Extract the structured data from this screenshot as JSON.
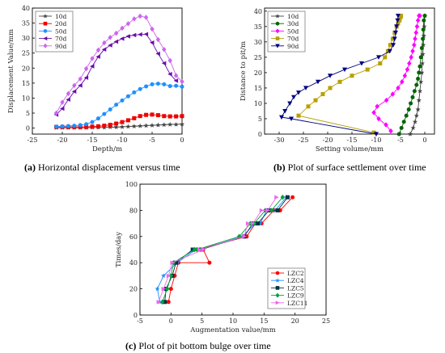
{
  "captions": {
    "a_tag": "(a)",
    "a_text": "Horizontal displacement versus time",
    "b_tag": "(b)",
    "b_text": "Plot of surface settlement over time",
    "c_tag": "(c)",
    "c_text": "Plot of pit bottom bulge over time"
  },
  "chart_data": [
    {
      "id": "a",
      "type": "line",
      "xlabel": "Depth/m",
      "ylabel": "Displacement Value/mm",
      "xlim": [
        -25,
        0
      ],
      "ylim": [
        -2,
        40
      ],
      "xticks": [
        -25,
        -20,
        -15,
        -10,
        -5,
        0
      ],
      "yticks": [
        0,
        5,
        10,
        15,
        20,
        25,
        30,
        35,
        40
      ],
      "legend_position": "top-left",
      "series": [
        {
          "name": "10d",
          "color": "#444444",
          "marker": "star",
          "x": [
            -21,
            -20,
            -19,
            -18,
            -17,
            -16,
            -15,
            -14,
            -13,
            -12,
            -11,
            -10,
            -9,
            -8,
            -7,
            -6,
            -5,
            -4,
            -3,
            -2,
            -1,
            0
          ],
          "y": [
            0.1,
            0.1,
            0.1,
            0.1,
            0.1,
            0.1,
            0.2,
            0.2,
            0.2,
            0.3,
            0.3,
            0.4,
            0.5,
            0.6,
            0.7,
            0.8,
            0.9,
            1.0,
            1.1,
            1.2,
            1.2,
            1.3
          ]
        },
        {
          "name": "20d",
          "color": "#ee0000",
          "marker": "square",
          "x": [
            -21,
            -20,
            -19,
            -18,
            -17,
            -16,
            -15,
            -14,
            -13,
            -12,
            -11,
            -10,
            -9,
            -8,
            -7,
            -6,
            -5,
            -4,
            -3,
            -2,
            -1,
            0
          ],
          "y": [
            0.4,
            0.4,
            0.4,
            0.4,
            0.4,
            0.4,
            0.5,
            0.6,
            0.8,
            1.1,
            1.5,
            2.0,
            2.6,
            3.3,
            4.0,
            4.4,
            4.5,
            4.3,
            4.0,
            3.9,
            3.9,
            4.0
          ]
        },
        {
          "name": "50d",
          "color": "#1e90ff",
          "marker": "circle",
          "x": [
            -21,
            -20,
            -19,
            -18,
            -17,
            -16,
            -15,
            -14,
            -13,
            -12,
            -11,
            -10,
            -9,
            -8,
            -7,
            -6,
            -5,
            -4,
            -3,
            -2,
            -1,
            0
          ],
          "y": [
            0.5,
            0.6,
            0.7,
            0.8,
            1.0,
            1.3,
            2.0,
            3.2,
            4.7,
            6.2,
            7.8,
            9.2,
            10.6,
            11.9,
            13.0,
            13.9,
            14.6,
            14.8,
            14.6,
            14.0,
            14.1,
            13.8
          ]
        },
        {
          "name": "70d",
          "color": "#6a0dad",
          "marker": "triangle-left",
          "x": [
            -21,
            -20,
            -19,
            -18,
            -17,
            -16,
            -15,
            -14,
            -13,
            -12,
            -11,
            -10,
            -9,
            -8,
            -7,
            -6,
            -5,
            -4,
            -3,
            -2,
            -1
          ],
          "y": [
            4.5,
            6.5,
            9.5,
            12.2,
            14.2,
            16.8,
            20.6,
            23.8,
            26.2,
            27.6,
            28.8,
            29.8,
            30.6,
            31.0,
            31.2,
            31.3,
            28.5,
            24.8,
            21.6,
            18.0,
            15.8
          ]
        },
        {
          "name": "90d",
          "color": "#cc66ee",
          "marker": "diamond",
          "x": [
            -21,
            -20,
            -19,
            -18,
            -17,
            -16,
            -15,
            -14,
            -13,
            -12,
            -11,
            -10,
            -9,
            -8,
            -7,
            -6,
            -5,
            -4,
            -3,
            -2,
            -1,
            0
          ],
          "y": [
            5.0,
            8.6,
            11.5,
            14.2,
            16.4,
            19.8,
            23.2,
            26.0,
            28.4,
            30.2,
            31.6,
            33.3,
            34.8,
            36.4,
            37.3,
            36.9,
            33.0,
            29.5,
            26.2,
            22.5,
            17.5,
            15.5
          ]
        }
      ]
    },
    {
      "id": "b",
      "type": "line",
      "xlabel": "Setting volume/mm",
      "ylabel": "Distance to pit/m",
      "xlim": [
        -33,
        2
      ],
      "ylim": [
        0,
        41
      ],
      "xticks": [
        -30,
        -25,
        -20,
        -15,
        -10,
        -5,
        0
      ],
      "yticks": [
        0,
        5,
        10,
        15,
        20,
        25,
        30,
        35,
        40
      ],
      "legend_position": "top-left",
      "series": [
        {
          "name": "10d",
          "color": "#444444",
          "marker": "star",
          "x": [
            -3.0,
            -2.4,
            -2.0,
            -1.7,
            -1.4,
            -1.2,
            -1.0,
            -0.8,
            -0.6,
            -0.5,
            -0.4,
            -0.3,
            -0.2,
            -0.1,
            0.0
          ],
          "y": [
            0,
            2,
            4,
            6,
            8,
            11,
            14,
            17,
            20,
            23,
            26,
            29,
            32,
            35,
            38.5
          ]
        },
        {
          "name": "30d",
          "color": "#006400",
          "marker": "circle",
          "x": [
            -5.3,
            -4.8,
            -4.3,
            -3.8,
            -3.3,
            -2.9,
            -2.5,
            -2.1,
            -1.7,
            -1.4,
            -1.2,
            -1.0,
            -0.8,
            -0.6,
            -0.4,
            -0.3,
            -0.2,
            0.0
          ],
          "y": [
            0,
            2,
            4,
            6,
            8,
            10,
            12,
            14,
            16,
            18,
            20,
            22,
            25,
            28,
            31,
            34,
            37,
            38.5
          ]
        },
        {
          "name": "50d",
          "color": "#ff00ff",
          "marker": "diamond",
          "x": [
            -7.0,
            -8.0,
            -9.5,
            -10.5,
            -9.8,
            -7.9,
            -6.6,
            -5.5,
            -4.7,
            -4.1,
            -3.6,
            -3.2,
            -2.8,
            -2.5,
            -2.2,
            -2.0,
            -1.8,
            -1.6,
            -1.4,
            -1.2,
            -1.0
          ],
          "y": [
            1,
            3,
            5,
            7,
            9,
            11,
            13,
            15,
            17,
            19,
            21,
            23,
            25,
            27,
            29,
            31,
            33,
            35,
            37,
            38.5,
            38.5
          ]
        },
        {
          "name": "70d",
          "color": "#b8a000",
          "marker": "square",
          "x": [
            -10.5,
            -26.0,
            -24.0,
            -22.5,
            -21.0,
            -19.5,
            -17.5,
            -15.0,
            -11.8,
            -9.2,
            -8.2,
            -7.6,
            -7.1,
            -6.6,
            -6.2,
            -5.8,
            -5.5,
            -5.2,
            -5.0,
            -4.9
          ],
          "y": [
            0.5,
            6,
            9,
            11,
            13,
            15,
            17,
            19,
            21,
            23,
            25,
            27,
            29,
            31,
            33,
            35,
            36,
            37,
            38,
            38.5
          ]
        },
        {
          "name": "90d",
          "color": "#000080",
          "marker": "triangle-down",
          "x": [
            -10.0,
            -27.5,
            -29.5,
            -28.8,
            -27.8,
            -27.0,
            -26.0,
            -24.5,
            -22.0,
            -19.5,
            -16.5,
            -13.0,
            -9.5,
            -7.2,
            -6.5,
            -6.2,
            -6.0,
            -5.8,
            -5.6,
            -5.5
          ],
          "y": [
            0,
            5,
            5.5,
            7.5,
            10,
            12,
            13.5,
            15,
            17,
            19,
            21,
            23,
            25,
            27,
            29,
            31,
            33,
            35,
            37,
            38.5
          ]
        }
      ]
    },
    {
      "id": "c",
      "type": "line",
      "xlabel": "Augmentation value/mm",
      "ylabel": "Times/day",
      "xlim": [
        -5,
        25
      ],
      "ylim": [
        0,
        100
      ],
      "xticks": [
        -5,
        0,
        5,
        10,
        15,
        20,
        25
      ],
      "yticks": [
        0,
        20,
        40,
        60,
        80,
        100
      ],
      "legend_position": "bottom-right",
      "series": [
        {
          "name": "LZC2",
          "color": "#ff0000",
          "marker": "circle",
          "x": [
            -0.4,
            0.0,
            0.6,
            1.2,
            6.2,
            5.2,
            4.2,
            12.2,
            13.6,
            14.6,
            16.6,
            17.6,
            19.6
          ],
          "y": [
            10,
            20,
            30,
            40,
            40,
            50,
            50,
            60,
            70,
            70,
            80,
            80,
            90
          ]
        },
        {
          "name": "LZC4",
          "color": "#1e90ff",
          "marker": "star",
          "x": [
            -1.8,
            -2.2,
            -1.2,
            1.0,
            4.0,
            4.8,
            11.5,
            13.6,
            14.4,
            15.4,
            16.8,
            18.6
          ],
          "y": [
            10,
            20,
            30,
            40,
            50,
            50,
            60,
            70,
            70,
            80,
            80,
            90
          ]
        },
        {
          "name": "LZC5",
          "color": "#003344",
          "marker": "square",
          "x": [
            -1.0,
            -0.8,
            0.2,
            0.8,
            3.5,
            4.8,
            11.8,
            13.2,
            14.0,
            15.8,
            17.2,
            18.8
          ],
          "y": [
            10,
            20,
            30,
            40,
            50,
            50,
            60,
            70,
            70,
            80,
            80,
            90
          ]
        },
        {
          "name": "LZC9",
          "color": "#00a040",
          "marker": "diamond",
          "x": [
            -1.4,
            -0.6,
            0.0,
            0.4,
            3.8,
            4.2,
            11.0,
            12.8,
            13.4,
            15.2,
            16.2,
            18.0
          ],
          "y": [
            10,
            20,
            30,
            40,
            50,
            50,
            60,
            70,
            70,
            80,
            80,
            90
          ]
        },
        {
          "name": "LZC11",
          "color": "#ee66ee",
          "marker": "triangle-right",
          "x": [
            -2.0,
            -1.2,
            -0.4,
            0.2,
            5.2,
            4.6,
            11.8,
            12.4,
            13.2,
            14.6,
            15.6,
            17.0
          ],
          "y": [
            10,
            20,
            30,
            40,
            50,
            50,
            60,
            70,
            70,
            80,
            80,
            90
          ]
        }
      ]
    }
  ]
}
